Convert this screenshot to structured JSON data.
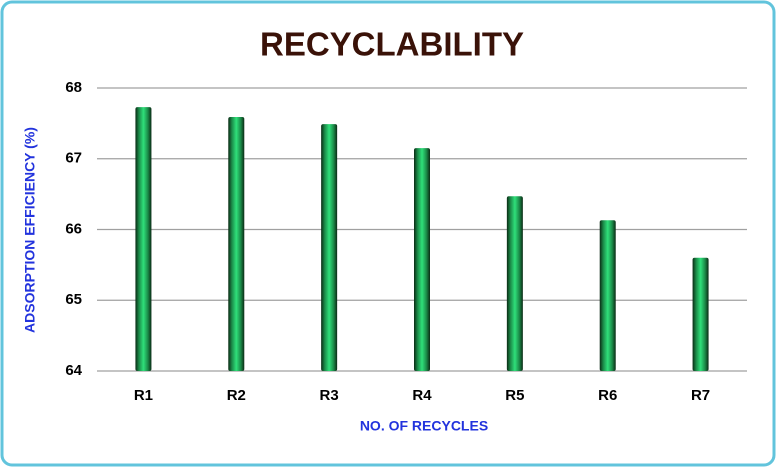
{
  "chart_data": {
    "type": "bar",
    "title": "RECYCLABILITY",
    "x_label": "NO. OF RECYCLES",
    "y_label": "ADSORPTION EFFICIENCY (%)",
    "categories": [
      "R1",
      "R2",
      "R3",
      "R4",
      "R5",
      "R6",
      "R7"
    ],
    "values": [
      67.73,
      67.59,
      67.49,
      67.15,
      66.47,
      66.13,
      65.6
    ],
    "color": "#2fe07a",
    "ylim": [
      64,
      68
    ],
    "yticks": [
      64,
      65,
      66,
      67,
      68
    ],
    "grid": true
  }
}
